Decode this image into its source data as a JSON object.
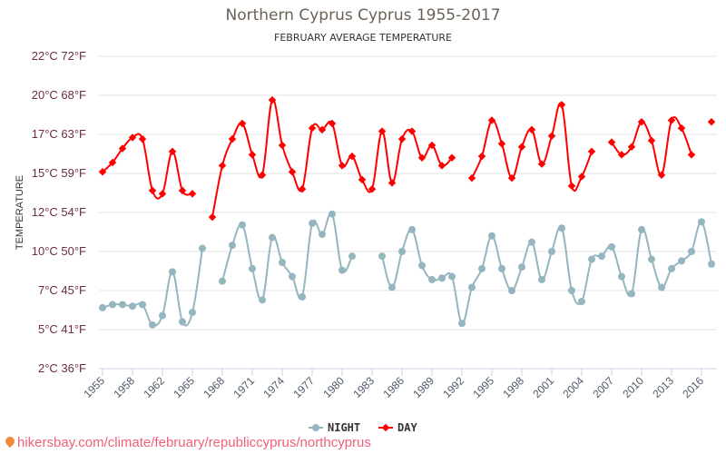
{
  "chart_data": {
    "type": "line",
    "title": "Northern Cyprus Cyprus 1955-2017",
    "subtitle": "FEBRUARY AVERAGE TEMPERATURE",
    "ylabel": "TEMPERATURE",
    "xlabel": "",
    "ylim": [
      2.5,
      22.5
    ],
    "y_ticks": [
      "2°C 36°F",
      "5°C 41°F",
      "7°C 45°F",
      "10°C 50°F",
      "12°C 54°F",
      "15°C 59°F",
      "17°C 63°F",
      "20°C 68°F",
      "22°C 72°F"
    ],
    "x_ticks": [
      "1955",
      "1958",
      "1962",
      "1965",
      "1968",
      "1971",
      "1974",
      "1977",
      "1980",
      "1983",
      "1986",
      "1989",
      "1992",
      "1995",
      "1998",
      "2001",
      "2004",
      "2007",
      "2010",
      "2013",
      "2016"
    ],
    "grid": true,
    "legend": "bottom",
    "x": [
      1955,
      1956,
      1957,
      1958,
      1959,
      1960,
      1961,
      1962,
      1963,
      1964,
      1965,
      1966,
      1967,
      1968,
      1969,
      1970,
      1971,
      1972,
      1973,
      1974,
      1975,
      1976,
      1977,
      1978,
      1979,
      1980,
      1981,
      1982,
      1983,
      1984,
      1985,
      1986,
      1987,
      1988,
      1989,
      1990,
      1991,
      1992,
      1993,
      1994,
      1995,
      1996,
      1997,
      1998,
      1999,
      2000,
      2001,
      2002,
      2003,
      2004,
      2005,
      2006,
      2007,
      2008,
      2009,
      2010,
      2011,
      2012,
      2013,
      2014,
      2015,
      2016
    ],
    "series": [
      {
        "name": "NIGHT",
        "color": "#95b5bf",
        "marker": "circle",
        "values": [
          6.4,
          6.6,
          6.6,
          6.5,
          6.6,
          5.3,
          5.9,
          8.7,
          5.5,
          6.1,
          10.2,
          null,
          8.1,
          10.4,
          11.7,
          8.9,
          6.9,
          10.9,
          9.3,
          8.4,
          7.1,
          11.8,
          11.1,
          12.4,
          8.8,
          9.7,
          null,
          null,
          9.7,
          7.7,
          10.0,
          11.4,
          9.1,
          8.2,
          8.3,
          8.4,
          5.4,
          7.7,
          8.9,
          11.0,
          8.9,
          7.5,
          9.0,
          10.6,
          8.2,
          10.0,
          11.5,
          7.5,
          6.8,
          9.5,
          9.7,
          10.3,
          8.4,
          7.3,
          11.4,
          9.5,
          7.7,
          8.9,
          9.4,
          10.0,
          11.9,
          9.2
        ]
      },
      {
        "name": "DAY",
        "color": "#ff0000",
        "marker": "diamond",
        "values": [
          15.1,
          15.7,
          16.6,
          17.3,
          17.2,
          13.9,
          13.7,
          16.4,
          13.9,
          13.7,
          null,
          12.2,
          15.5,
          17.2,
          18.2,
          16.2,
          14.9,
          19.7,
          16.8,
          15.1,
          14.0,
          17.9,
          17.8,
          18.2,
          15.5,
          16.1,
          14.6,
          14.0,
          17.7,
          14.4,
          17.2,
          17.7,
          16.0,
          16.8,
          15.5,
          16.0,
          null,
          14.7,
          16.1,
          18.4,
          16.9,
          14.7,
          16.7,
          17.8,
          15.6,
          17.4,
          19.4,
          14.2,
          14.8,
          16.4,
          null,
          17.0,
          16.2,
          16.7,
          18.3,
          17.1,
          14.9,
          18.4,
          17.9,
          16.2,
          null,
          18.3
        ]
      }
    ]
  },
  "footer": {
    "url": "hikersbay.com/climate/february/republiccyprus/northcyprus",
    "icon": "map-pin-icon"
  }
}
